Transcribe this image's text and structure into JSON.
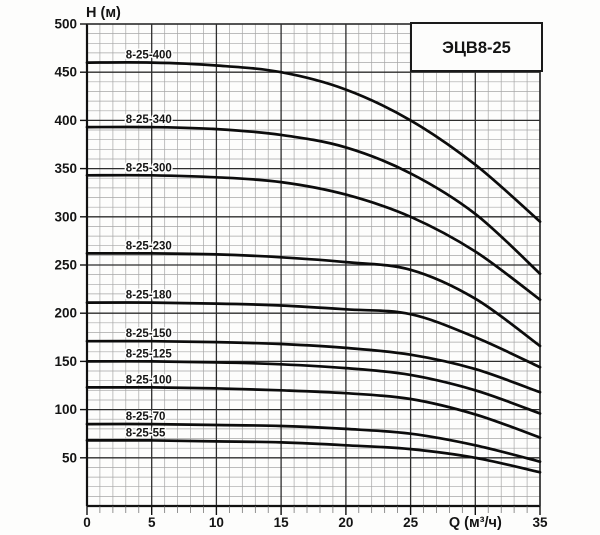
{
  "figure": {
    "background": "#fdfdfc",
    "title_box_label": "ЭЦВ8-25",
    "y_axis_title": "Н (м)",
    "x_axis_title": "Q (м³/ч)",
    "y_tick_labels": [
      "50",
      "100",
      "150",
      "200",
      "250",
      "300",
      "350",
      "400",
      "450",
      "500"
    ],
    "x_tick_labels": [
      "0",
      "5",
      "10",
      "15",
      "20",
      "25",
      "",
      "35"
    ],
    "colors": {
      "minor_grid": "#a6a6a6",
      "major_grid": "#2d2d2d",
      "axis_line": "#111111",
      "curve": "#0c0c0c",
      "text": "#141414",
      "box_border": "#1a1a1a",
      "box_fill": "#fdfdfc"
    }
  },
  "chart_data": {
    "type": "line",
    "title": "ЭЦВ8-25",
    "xlabel": "Q (м³/ч)",
    "ylabel": "Н (м)",
    "xlim": [
      0,
      35
    ],
    "ylim": [
      0,
      500
    ],
    "x_major_step": 5,
    "x_minor_step": 1,
    "y_major_step": 50,
    "y_minor_step": 10,
    "grid": "minor and major, both axes",
    "legend_position": "labels above each curve at left",
    "x": [
      0,
      5,
      10,
      15,
      20,
      25,
      30,
      35
    ],
    "series": [
      {
        "name": "8-25-400",
        "values": [
          460,
          460,
          457,
          450,
          432,
          400,
          354,
          295
        ]
      },
      {
        "name": "8-25-340",
        "values": [
          393,
          393,
          391,
          385,
          372,
          345,
          303,
          241
        ]
      },
      {
        "name": "8-25-300",
        "values": [
          343,
          343,
          341,
          336,
          323,
          300,
          264,
          214
        ]
      },
      {
        "name": "8-25-230",
        "values": [
          262,
          262,
          261,
          258,
          253,
          245,
          215,
          166
        ]
      },
      {
        "name": "8-25-180",
        "values": [
          211,
          211,
          210,
          208,
          204,
          199,
          175,
          144
        ]
      },
      {
        "name": "8-25-150",
        "values": [
          171,
          171,
          170,
          168,
          164,
          157,
          142,
          118
        ]
      },
      {
        "name": "8-25-125",
        "values": [
          150,
          150,
          149,
          147,
          143,
          136,
          120,
          96
        ]
      },
      {
        "name": "8-25-100",
        "values": [
          123,
          123,
          122,
          120,
          117,
          111,
          95,
          71
        ]
      },
      {
        "name": "8-25-70",
        "values": [
          85,
          85,
          84,
          83,
          80,
          75,
          63,
          46
        ]
      },
      {
        "name": "8-25-55",
        "values": [
          68,
          68,
          67,
          66,
          63,
          59,
          50,
          35
        ]
      }
    ]
  }
}
